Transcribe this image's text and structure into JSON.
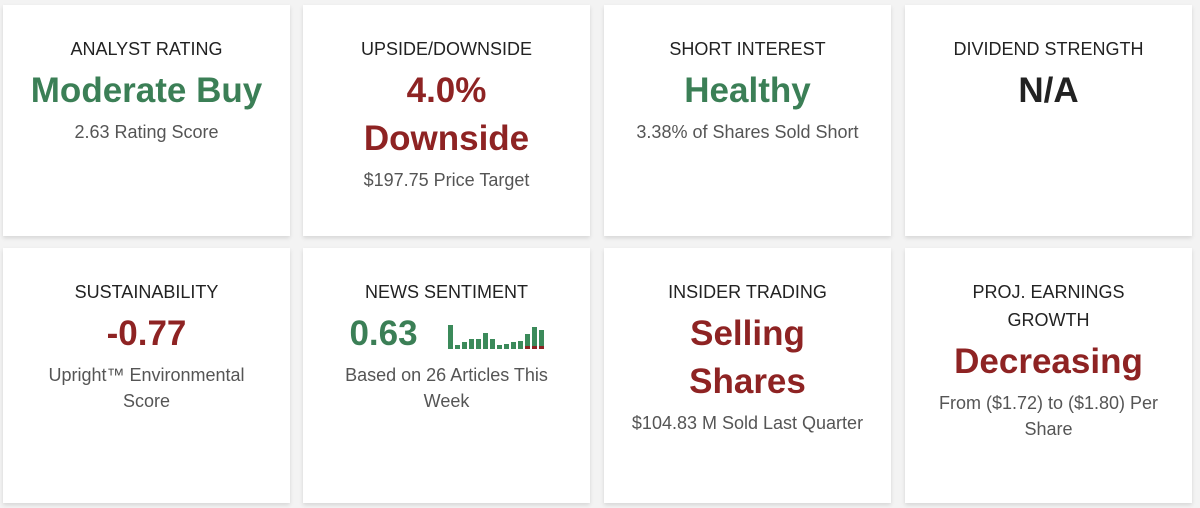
{
  "cards": [
    {
      "label": "ANALYST RATING",
      "value": "Moderate Buy",
      "sub": "2.63 Rating Score",
      "color": "#3b7f56"
    },
    {
      "label": "UPSIDE/DOWNSIDE",
      "value": "4.0% Downside",
      "sub": "$197.75 Price Target",
      "color": "#8e2323"
    },
    {
      "label": "SHORT INTEREST",
      "value": "Healthy",
      "sub": "3.38% of Shares Sold Short",
      "color": "#3b7f56"
    },
    {
      "label": "DIVIDEND STRENGTH",
      "value": "N/A",
      "sub": "",
      "color": "#222222"
    },
    {
      "label": "SUSTAINABILITY",
      "value": "-0.77",
      "sub": "Upright™ Environmental Score",
      "color": "#8e2323"
    },
    {
      "label": "NEWS SENTIMENT",
      "value": "0.63",
      "sub": "Based on 26 Articles This Week",
      "color": "#3b7f56",
      "sparkline": [
        1.0,
        0.15,
        0.3,
        0.4,
        0.4,
        0.65,
        0.4,
        0.15,
        0.2,
        0.3,
        0.35,
        0.5,
        0.8,
        0.65
      ],
      "sparkline_negative": [
        false,
        false,
        false,
        false,
        false,
        false,
        false,
        false,
        false,
        false,
        false,
        true,
        true,
        true
      ]
    },
    {
      "label": "INSIDER TRADING",
      "value": "Selling Shares",
      "sub": "$104.83 M Sold Last Quarter",
      "color": "#8e2323"
    },
    {
      "label": "PROJ. EARNINGS GROWTH",
      "value": "Decreasing",
      "sub": "From ($1.72) to ($1.80) Per Share",
      "color": "#8e2323"
    }
  ]
}
